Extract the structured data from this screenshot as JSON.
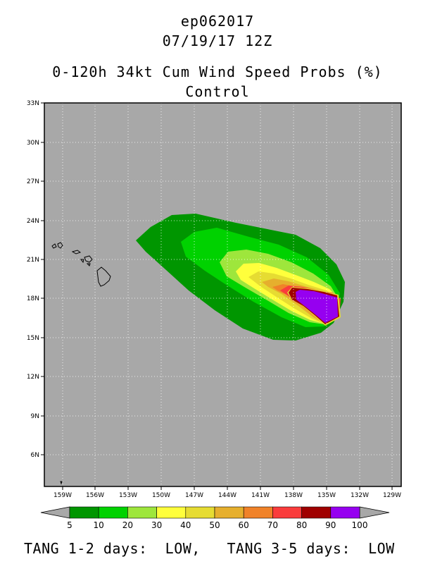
{
  "header": {
    "storm_id": "ep062017",
    "datetime": "07/19/17 12Z",
    "product": "0-120h 34kt Cum Wind Speed Probs (%)",
    "model": "Control"
  },
  "map": {
    "lat_labels": [
      "33N",
      "30N",
      "27N",
      "24N",
      "21N",
      "18N",
      "15N",
      "12N",
      "9N",
      "6N"
    ],
    "lon_labels": [
      "159W",
      "156W",
      "153W",
      "150W",
      "147W",
      "144W",
      "141W",
      "138W",
      "135W",
      "132W",
      "129W"
    ],
    "background_color": "#a8a8a8",
    "gridlines": "dotted"
  },
  "colorbar": {
    "labels": [
      "5",
      "10",
      "20",
      "30",
      "40",
      "50",
      "60",
      "70",
      "80",
      "90",
      "100"
    ],
    "colors": [
      "#009600",
      "#00d200",
      "#9ee63c",
      "#ffff3c",
      "#e6dc32",
      "#e6af2d",
      "#f08228",
      "#fa3c3c",
      "#a00000",
      "#9600f0"
    ]
  },
  "footer": {
    "text": "TANG 1-2 days:  LOW,   TANG 3-5 days:  LOW"
  }
}
